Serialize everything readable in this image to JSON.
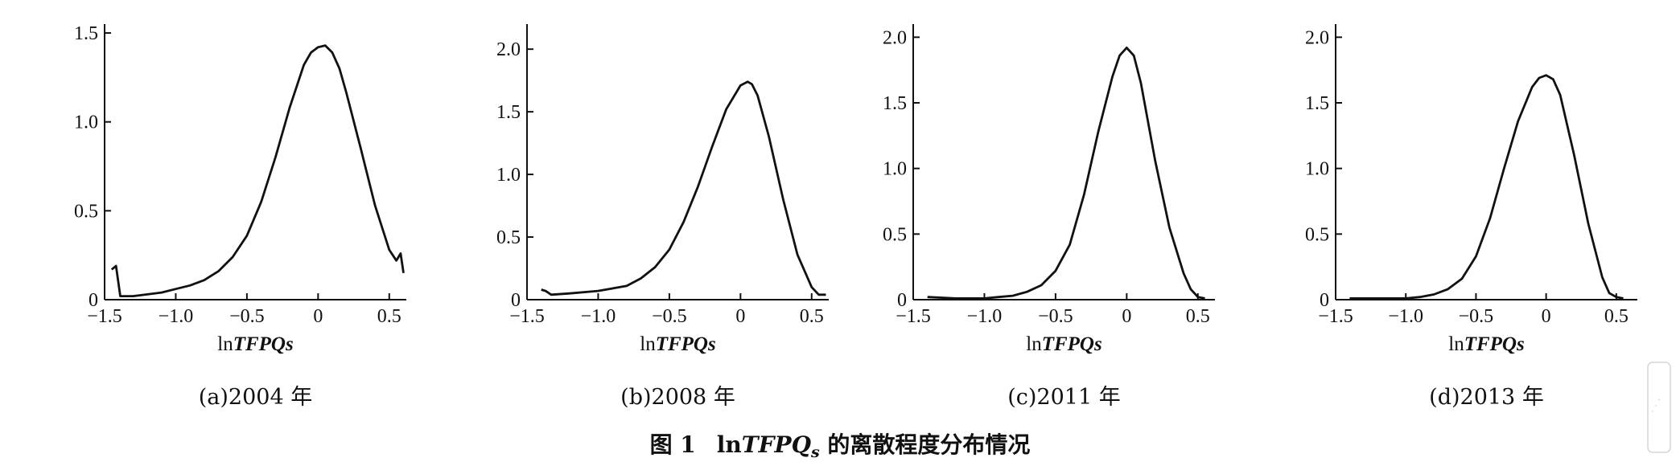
{
  "figure_caption": {
    "label": "图 1",
    "prefix": "ln",
    "var": "TFPQ",
    "sub": "s",
    "suffix": " 的离散程度分布情况"
  },
  "watermark": "龙源期刊网",
  "chart_data": [
    {
      "type": "line",
      "caption": "(a)2004 年",
      "xlabel_prefix": "ln",
      "xlabel_var": "TFPQs",
      "xlim": [
        -1.5,
        0.62
      ],
      "ylim": [
        0,
        1.55
      ],
      "xticks": [
        -1.5,
        -1.0,
        -0.5,
        0,
        0.5
      ],
      "xtick_labels": [
        "−1.5",
        "−1.0",
        "−0.5",
        "0",
        "0.5"
      ],
      "yticks": [
        0,
        0.5,
        1.0,
        1.5
      ],
      "ytick_labels": [
        "0",
        "0.5",
        "1.0",
        "1.5"
      ],
      "series": [
        {
          "x": [
            -1.45,
            -1.42,
            -1.39,
            -1.3,
            -1.2,
            -1.1,
            -1.0,
            -0.9,
            -0.8,
            -0.7,
            -0.6,
            -0.5,
            -0.4,
            -0.3,
            -0.2,
            -0.1,
            -0.05,
            0.0,
            0.05,
            0.1,
            0.15,
            0.2,
            0.3,
            0.4,
            0.5,
            0.55,
            0.58,
            0.6
          ],
          "y": [
            0.17,
            0.19,
            0.02,
            0.02,
            0.03,
            0.04,
            0.06,
            0.08,
            0.11,
            0.16,
            0.24,
            0.36,
            0.55,
            0.8,
            1.08,
            1.32,
            1.39,
            1.42,
            1.43,
            1.39,
            1.3,
            1.16,
            0.85,
            0.53,
            0.28,
            0.22,
            0.26,
            0.15
          ]
        }
      ]
    },
    {
      "type": "line",
      "caption": "(b)2008 年",
      "xlabel_prefix": "ln",
      "xlabel_var": "TFPQs",
      "xlim": [
        -1.5,
        0.62
      ],
      "ylim": [
        0,
        2.2
      ],
      "xticks": [
        -1.5,
        -1.0,
        -0.5,
        0,
        0.5
      ],
      "xtick_labels": [
        "−1.5",
        "−1.0",
        "−0.5",
        "0",
        "0.5"
      ],
      "yticks": [
        0,
        0.5,
        1.0,
        1.5,
        2.0
      ],
      "ytick_labels": [
        "0",
        "0.5",
        "1.0",
        "1.5",
        "2.0"
      ],
      "series": [
        {
          "x": [
            -1.4,
            -1.37,
            -1.33,
            -1.2,
            -1.0,
            -0.8,
            -0.7,
            -0.6,
            -0.5,
            -0.4,
            -0.3,
            -0.2,
            -0.1,
            0.0,
            0.05,
            0.08,
            0.12,
            0.2,
            0.3,
            0.4,
            0.5,
            0.55,
            0.6
          ],
          "y": [
            0.08,
            0.07,
            0.04,
            0.05,
            0.07,
            0.11,
            0.17,
            0.26,
            0.4,
            0.62,
            0.9,
            1.22,
            1.52,
            1.71,
            1.74,
            1.72,
            1.63,
            1.3,
            0.8,
            0.36,
            0.1,
            0.04,
            0.04
          ]
        }
      ]
    },
    {
      "type": "line",
      "caption": "(c)2011 年",
      "xlabel_prefix": "ln",
      "xlabel_var": "TFPQs",
      "xlim": [
        -1.5,
        0.62
      ],
      "ylim": [
        0,
        2.1
      ],
      "xticks": [
        -1.5,
        -1.0,
        -0.5,
        0,
        0.5
      ],
      "xtick_labels": [
        "−1.5",
        "−1.0",
        "−0.5",
        "0",
        "0.5"
      ],
      "yticks": [
        0,
        0.5,
        1.0,
        1.5,
        2.0
      ],
      "ytick_labels": [
        "0",
        "0.5",
        "1.0",
        "1.5",
        "2.0"
      ],
      "series": [
        {
          "x": [
            -1.4,
            -1.2,
            -1.0,
            -0.9,
            -0.8,
            -0.7,
            -0.6,
            -0.5,
            -0.4,
            -0.3,
            -0.2,
            -0.1,
            -0.05,
            0.0,
            0.05,
            0.1,
            0.2,
            0.3,
            0.4,
            0.45,
            0.5,
            0.55
          ],
          "y": [
            0.02,
            0.01,
            0.01,
            0.02,
            0.03,
            0.06,
            0.11,
            0.22,
            0.42,
            0.8,
            1.28,
            1.7,
            1.86,
            1.92,
            1.86,
            1.65,
            1.06,
            0.55,
            0.2,
            0.08,
            0.02,
            0.01
          ]
        }
      ]
    },
    {
      "type": "line",
      "caption": "(d)2013 年",
      "xlabel_prefix": "ln",
      "xlabel_var": "TFPQs",
      "xlim": [
        -1.5,
        0.65
      ],
      "ylim": [
        0,
        2.1
      ],
      "xticks": [
        -1.5,
        -1.0,
        -0.5,
        0,
        0.5
      ],
      "xtick_labels": [
        "−1.5",
        "−1.0",
        "−0.5",
        "0",
        "0.5"
      ],
      "yticks": [
        0,
        0.5,
        1.0,
        1.5,
        2.0
      ],
      "ytick_labels": [
        "0",
        "0.5",
        "1.0",
        "1.5",
        "2.0"
      ],
      "series": [
        {
          "x": [
            -1.4,
            -1.2,
            -1.0,
            -0.9,
            -0.8,
            -0.7,
            -0.6,
            -0.5,
            -0.4,
            -0.3,
            -0.2,
            -0.1,
            -0.05,
            0.0,
            0.05,
            0.1,
            0.2,
            0.3,
            0.4,
            0.45,
            0.5,
            0.55
          ],
          "y": [
            0.01,
            0.01,
            0.01,
            0.02,
            0.04,
            0.08,
            0.16,
            0.33,
            0.62,
            1.0,
            1.36,
            1.62,
            1.69,
            1.71,
            1.68,
            1.56,
            1.1,
            0.58,
            0.17,
            0.05,
            0.02,
            0.01
          ]
        }
      ]
    }
  ]
}
